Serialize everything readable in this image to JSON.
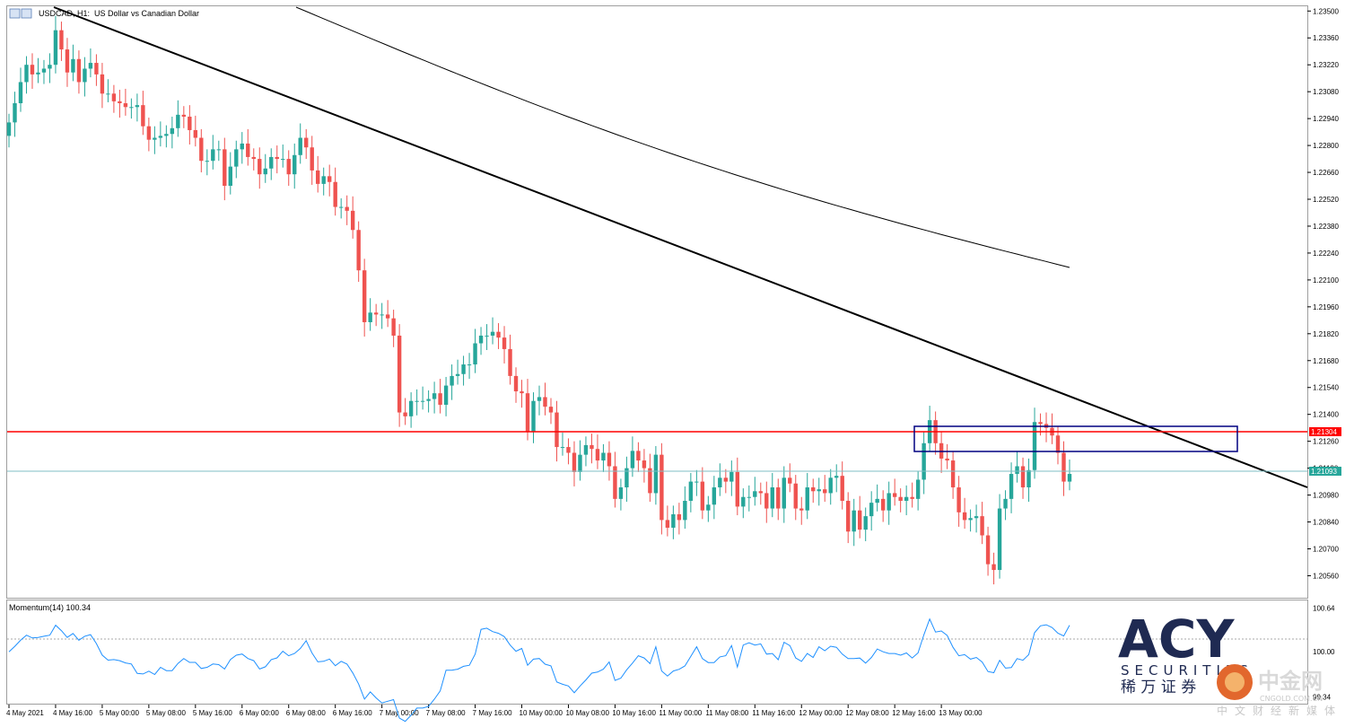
{
  "header": {
    "symbol_label": "USDCAD, H1:",
    "description": "US Dollar vs Canadian Dollar"
  },
  "indicator": {
    "label": "Momentum(14) 100.34",
    "axis_ticks": [
      "100.64",
      "100.00",
      "99.34"
    ]
  },
  "colors": {
    "bull": "#26a69a",
    "bear": "#ef5350",
    "resistance": "#ff0000",
    "current_price": "#26a69a",
    "box": "#000080",
    "momentum": "#1e90ff"
  },
  "branding": {
    "logo": "ACY",
    "logo_sub": "SECURITIES",
    "logo_cn": "稀 万 证 券",
    "watermark": "中金网",
    "watermark_url": "CNGOLD.COM.CN",
    "watermark_cn": "中文财经新媒体"
  },
  "chart_data": {
    "type": "candlestick",
    "title": "USDCAD, H1:  US Dollar vs Canadian Dollar",
    "ylim": [
      1.2045,
      1.2352
    ],
    "y_ticks": [
      "1.23500",
      "1.23360",
      "1.23220",
      "1.23080",
      "1.22940",
      "1.22800",
      "1.22660",
      "1.22520",
      "1.22380",
      "1.22240",
      "1.22100",
      "1.21960",
      "1.21820",
      "1.21680",
      "1.21540",
      "1.21400",
      "1.21260",
      "1.21120",
      "1.20980",
      "1.20840",
      "1.20700",
      "1.20560"
    ],
    "x_ticks": [
      "4 May 2021",
      "4 May 16:00",
      "5 May 00:00",
      "5 May 08:00",
      "5 May 16:00",
      "6 May 00:00",
      "6 May 08:00",
      "6 May 16:00",
      "7 May 00:00",
      "7 May 08:00",
      "7 May 16:00",
      "10 May 00:00",
      "10 May 08:00",
      "10 May 16:00",
      "11 May 00:00",
      "11 May 08:00",
      "11 May 16:00",
      "12 May 00:00",
      "12 May 08:00",
      "12 May 16:00",
      "13 May 00:00"
    ],
    "closes": [
      1.2292,
      1.2302,
      1.2313,
      1.2322,
      1.2317,
      1.2318,
      1.232,
      1.2322,
      1.234,
      1.233,
      1.2318,
      1.2325,
      1.2313,
      1.232,
      1.2323,
      1.2317,
      1.2307,
      1.2307,
      1.2303,
      1.2302,
      1.23,
      1.23,
      1.2301,
      1.229,
      1.2283,
      1.2284,
      1.2285,
      1.2286,
      1.2289,
      1.2296,
      1.2295,
      1.2288,
      1.2284,
      1.2272,
      1.2272,
      1.2278,
      1.2278,
      1.2259,
      1.2269,
      1.2278,
      1.2281,
      1.2274,
      1.2273,
      1.2265,
      1.2268,
      1.2274,
      1.2273,
      1.2273,
      1.2265,
      1.2275,
      1.2284,
      1.2279,
      1.2267,
      1.226,
      1.2264,
      1.2261,
      1.2248,
      1.2248,
      1.2246,
      1.2236,
      1.2215,
      1.2188,
      1.2193,
      1.2192,
      1.2192,
      1.219,
      1.2181,
      1.2141,
      1.2139,
      1.2147,
      1.2147,
      1.2147,
      1.2148,
      1.2151,
      1.2145,
      1.2155,
      1.216,
      1.2161,
      1.2166,
      1.2166,
      1.2177,
      1.2181,
      1.2181,
      1.2183,
      1.218,
      1.2174,
      1.216,
      1.2152,
      1.2151,
      1.2131,
      1.2147,
      1.2149,
      1.2144,
      1.2141,
      1.2123,
      1.2123,
      1.212,
      1.211,
      1.2119,
      1.2124,
      1.2122,
      1.2116,
      1.212,
      1.2113,
      1.2096,
      1.2102,
      1.2112,
      1.2121,
      1.2116,
      1.2112,
      1.2099,
      1.2119,
      1.2085,
      1.2081,
      1.2088,
      1.2085,
      1.2095,
      1.2105,
      1.2105,
      1.209,
      1.2093,
      1.2102,
      1.2107,
      1.2105,
      1.211,
      1.2092,
      1.2097,
      1.2097,
      1.21,
      1.2099,
      1.2091,
      1.2102,
      1.2091,
      1.2107,
      1.2104,
      1.2091,
      1.209,
      1.2102,
      1.21,
      1.2101,
      1.2099,
      1.2107,
      1.2108,
      1.2095,
      1.2079,
      1.209,
      1.208,
      1.2087,
      1.2094,
      1.2096,
      1.209,
      1.2099,
      1.2097,
      1.2095,
      1.2097,
      1.2096,
      1.2106,
      1.2125,
      1.2137,
      1.2125,
      1.2117,
      1.2116,
      1.2102,
      1.2089,
      1.2085,
      1.2086,
      1.2087,
      1.2077,
      1.2062,
      1.2059,
      1.2091,
      1.2096,
      1.2109,
      1.2113,
      1.2102,
      1.2111,
      1.2136,
      1.2135,
      1.2133,
      1.2129,
      1.212,
      1.2105,
      1.2109
    ],
    "momentum_ylim": [
      99.24,
      100.74
    ],
    "current_price": "1.21093",
    "resistance_level": "1.21304",
    "legend": "none",
    "grid": false
  }
}
